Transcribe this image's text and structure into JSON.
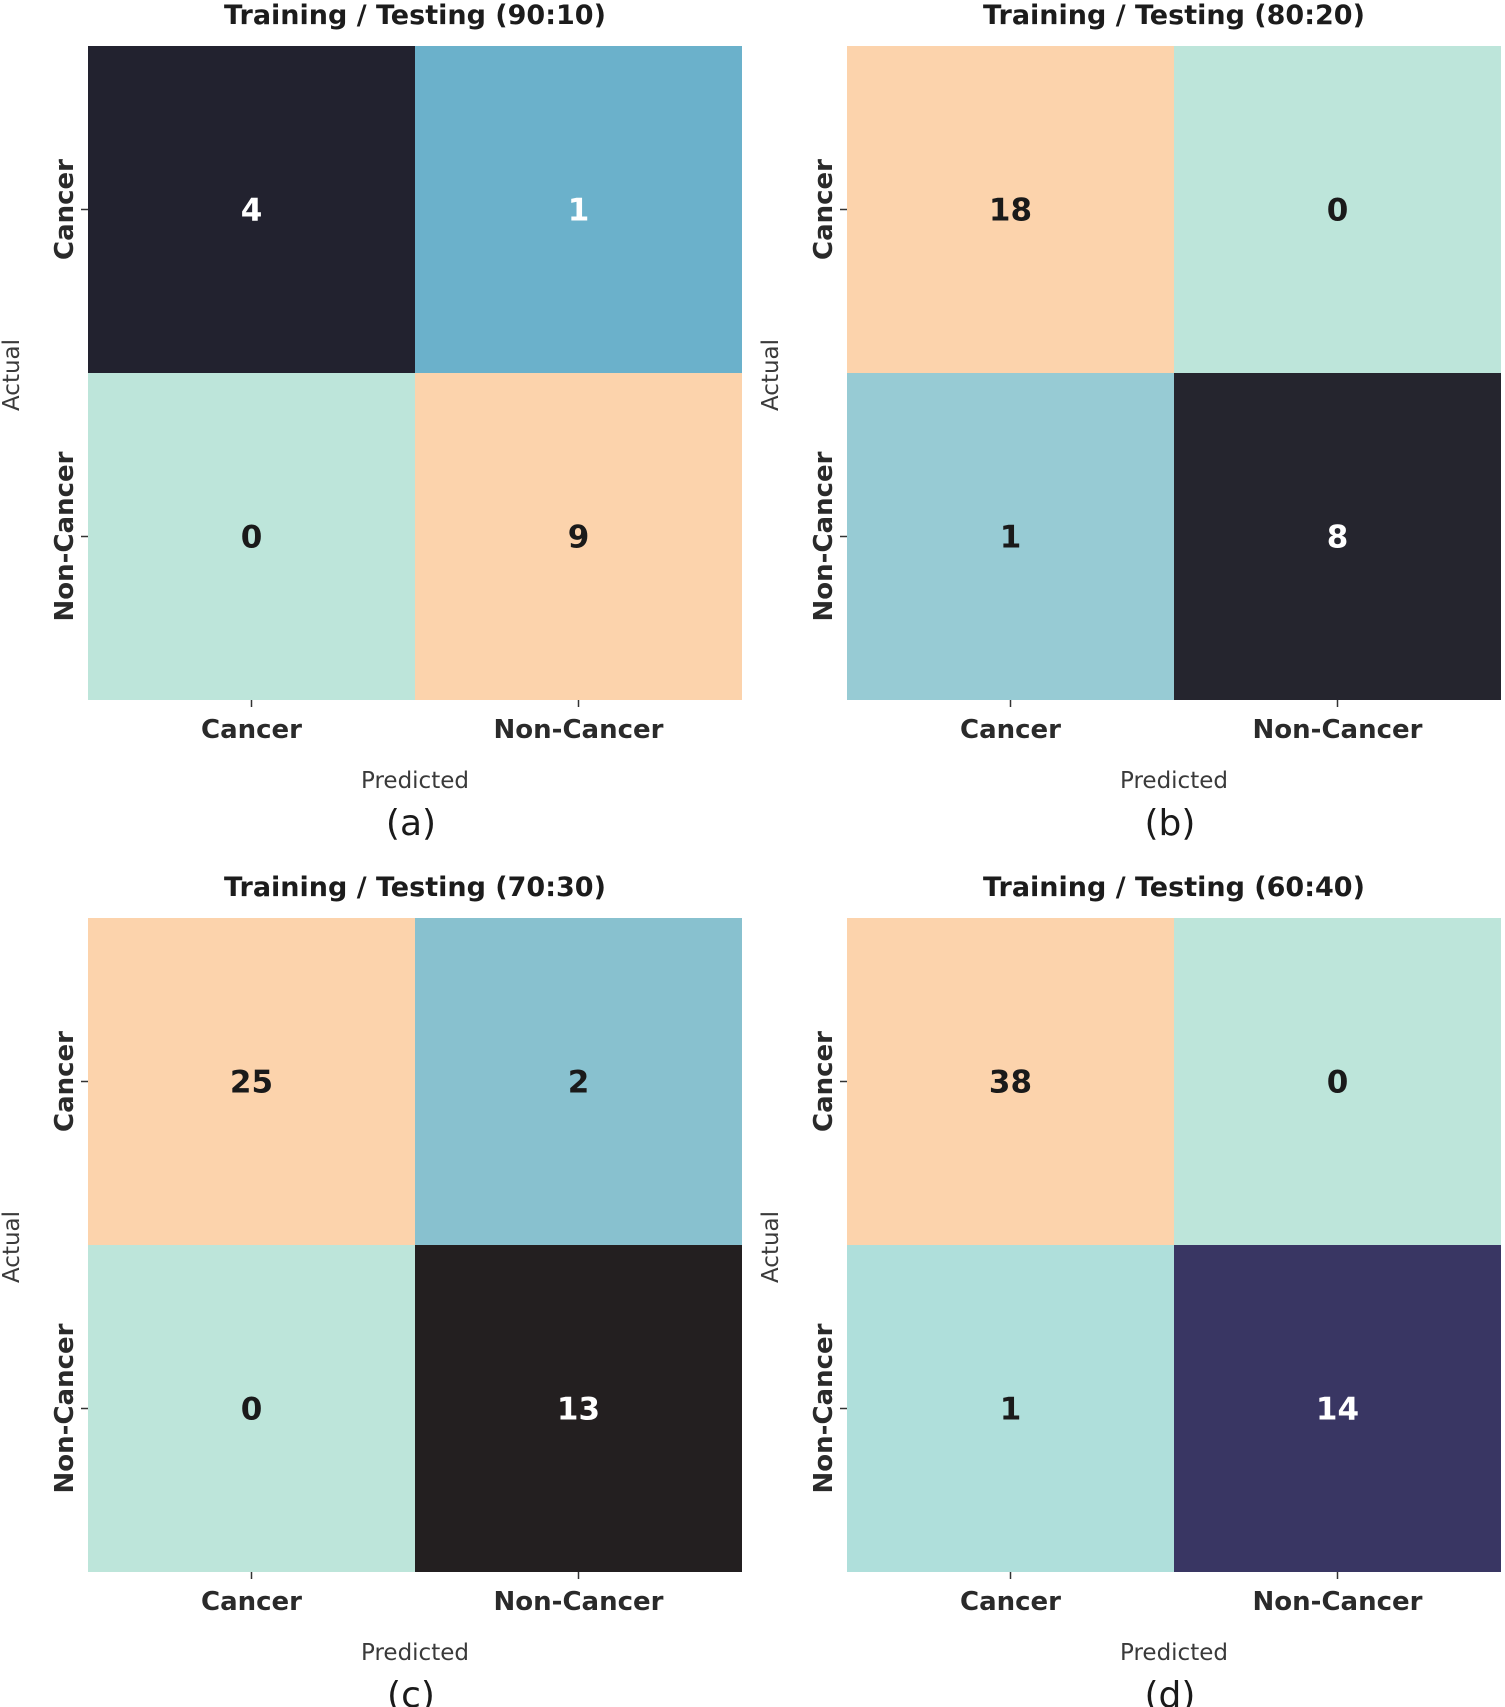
{
  "chart_data": [
    {
      "type": "heatmap",
      "title": "Training / Testing (90:10)",
      "xlabel": "Predicted",
      "ylabel": "Actual",
      "x_categories": [
        "Cancer",
        "Non-Cancer"
      ],
      "y_categories": [
        "Cancer",
        "Non-Cancer"
      ],
      "values": [
        [
          4,
          1
        ],
        [
          0,
          9
        ]
      ],
      "cell_colors": [
        [
          "#22222f",
          "#6bb1cb"
        ],
        [
          "#bde5da",
          "#fcd3ac"
        ]
      ],
      "value_colors": [
        [
          "#ffffff",
          "#ffffff"
        ],
        [
          "#1a1a1a",
          "#1a1a1a"
        ]
      ],
      "caption": "(a)"
    },
    {
      "type": "heatmap",
      "title": "Training / Testing (80:20)",
      "xlabel": "Predicted",
      "ylabel": "Actual",
      "x_categories": [
        "Cancer",
        "Non-Cancer"
      ],
      "y_categories": [
        "Cancer",
        "Non-Cancer"
      ],
      "values": [
        [
          18,
          0
        ],
        [
          1,
          8
        ]
      ],
      "cell_colors": [
        [
          "#fcd3ac",
          "#bde5da"
        ],
        [
          "#97cbd4",
          "#25252e"
        ]
      ],
      "value_colors": [
        [
          "#1a1a1a",
          "#1a1a1a"
        ],
        [
          "#1a1a1a",
          "#ffffff"
        ]
      ],
      "caption": "(b)"
    },
    {
      "type": "heatmap",
      "title": "Training / Testing (70:30)",
      "xlabel": "Predicted",
      "ylabel": "Actual",
      "x_categories": [
        "Cancer",
        "Non-Cancer"
      ],
      "y_categories": [
        "Cancer",
        "Non-Cancer"
      ],
      "values": [
        [
          25,
          2
        ],
        [
          0,
          13
        ]
      ],
      "cell_colors": [
        [
          "#fcd3ac",
          "#88c1cf"
        ],
        [
          "#bde5da",
          "#231f20"
        ]
      ],
      "value_colors": [
        [
          "#1a1a1a",
          "#1a1a1a"
        ],
        [
          "#1a1a1a",
          "#ffffff"
        ]
      ],
      "caption": "(c)"
    },
    {
      "type": "heatmap",
      "title": "Training / Testing (60:40)",
      "xlabel": "Predicted",
      "ylabel": "Actual",
      "x_categories": [
        "Cancer",
        "Non-Cancer"
      ],
      "y_categories": [
        "Cancer",
        "Non-Cancer"
      ],
      "values": [
        [
          38,
          0
        ],
        [
          1,
          14
        ]
      ],
      "cell_colors": [
        [
          "#fcd3ac",
          "#bde5da"
        ],
        [
          "#afdfdb",
          "#393663"
        ]
      ],
      "value_colors": [
        [
          "#1a1a1a",
          "#1a1a1a"
        ],
        [
          "#1a1a1a",
          "#ffffff"
        ]
      ],
      "caption": "(d)"
    }
  ]
}
